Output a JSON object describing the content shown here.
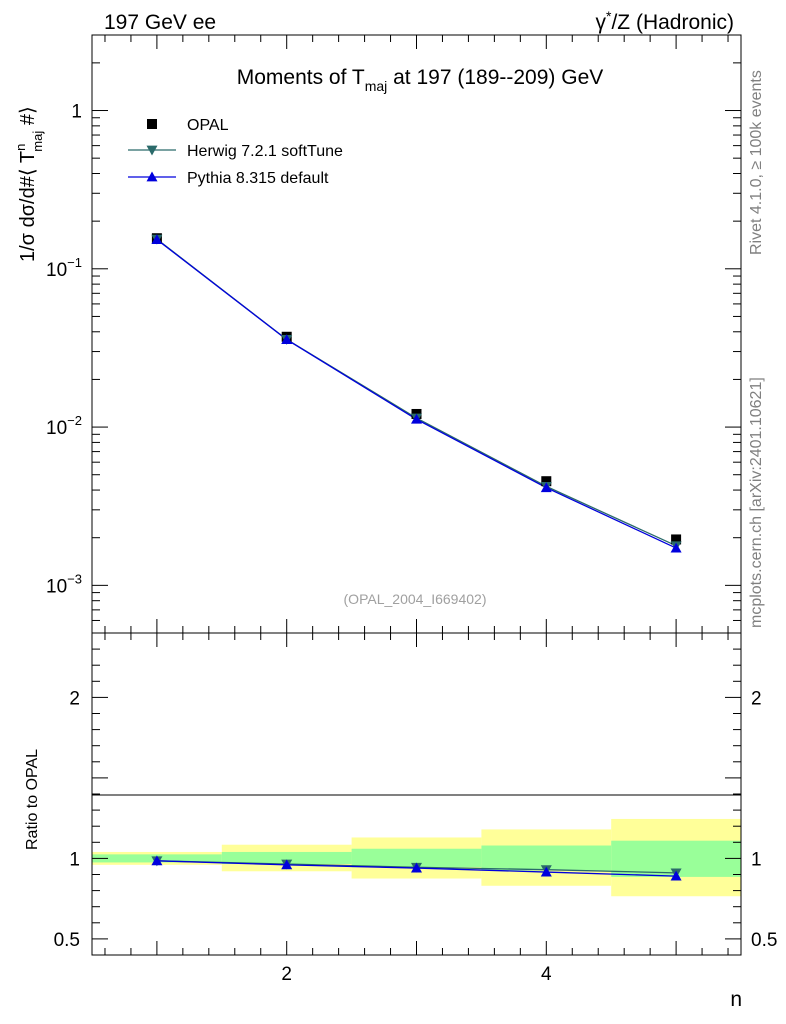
{
  "header": {
    "left": "197 GeV ee",
    "right_prefix": "γ",
    "right_sup": "*",
    "right_rest": "/Z (Hadronic)"
  },
  "side_labels": {
    "top": "Rivet 4.1.0, ≥ 100k events",
    "bottom": "mcplots.cern.ch [arXiv:2401.10621]"
  },
  "title": {
    "pre": "Moments of T",
    "sub": "maj",
    "post": " at 197 (189--209) GeV"
  },
  "y_label": {
    "p1": "1/σ  dσ/d#⟨ T",
    "sup": "n",
    "sub": "maj",
    "p2": " #⟩"
  },
  "ratio_label": "Ratio to OPAL",
  "x_label": "n",
  "analysis_tag": "(OPAL_2004_I669402)",
  "legend": [
    {
      "name": "OPAL",
      "marker": "square",
      "color": "#000000"
    },
    {
      "name": "Herwig 7.2.1 softTune",
      "marker": "triangle-down",
      "color": "#2a6a6a"
    },
    {
      "name": "Pythia 8.315 default",
      "marker": "triangle-up",
      "color": "#0000dd"
    }
  ],
  "chart_data": {
    "type": "line",
    "title": "Moments of T_maj at 197 (189--209) GeV",
    "xlabel": "n",
    "ylabel": "1/σ dσ/d#⟨ T^n_maj #⟩",
    "xlim": [
      0.5,
      5.5
    ],
    "ylim": [
      0.0005,
      3.0
    ],
    "yscale": "log",
    "ratio_ylim": [
      0.4,
      2.4
    ],
    "x_ticks": [
      {
        "value": 2,
        "label": "2"
      },
      {
        "value": 4,
        "label": "4"
      }
    ],
    "y_ticks": [
      {
        "value": 1,
        "base": "1",
        "exp": ""
      },
      {
        "value": 0.1,
        "base": "10",
        "exp": "−1"
      },
      {
        "value": 0.01,
        "base": "10",
        "exp": "−2"
      },
      {
        "value": 0.001,
        "base": "10",
        "exp": "−3"
      }
    ],
    "ratio_ticks": [
      {
        "value": 0.5,
        "label": "0.5"
      },
      {
        "value": 1,
        "label": "1"
      },
      {
        "value": 2,
        "label": "2"
      }
    ],
    "x": [
      1,
      2,
      3,
      4,
      5
    ],
    "series": [
      {
        "name": "OPAL",
        "values": [
          0.156,
          0.0372,
          0.0121,
          0.00455,
          0.00195
        ],
        "color": "#000000"
      },
      {
        "name": "Herwig 7.2.1 softTune",
        "values": [
          0.154,
          0.0358,
          0.0114,
          0.00422,
          0.00178
        ],
        "color": "#2a6a6a"
      },
      {
        "name": "Pythia 8.315 default",
        "values": [
          0.153,
          0.0357,
          0.0112,
          0.00414,
          0.00172
        ],
        "color": "#0000dd"
      }
    ],
    "ratio_series": [
      {
        "name": "Herwig 7.2.1 softTune",
        "values": [
          0.985,
          0.965,
          0.945,
          0.93,
          0.91
        ]
      },
      {
        "name": "Pythia 8.315 default",
        "values": [
          0.985,
          0.96,
          0.94,
          0.915,
          0.89
        ]
      }
    ],
    "uncertainty_bands": {
      "bins": [
        [
          0.5,
          1.5
        ],
        [
          1.5,
          2.5
        ],
        [
          2.5,
          3.5
        ],
        [
          3.5,
          4.5
        ],
        [
          4.5,
          5.5
        ]
      ],
      "stat_lo": [
        0.975,
        0.965,
        0.945,
        0.925,
        0.885
      ],
      "stat_hi": [
        1.025,
        1.04,
        1.06,
        1.08,
        1.11
      ],
      "total_lo": [
        0.96,
        0.92,
        0.875,
        0.83,
        0.765
      ],
      "total_hi": [
        1.04,
        1.085,
        1.13,
        1.18,
        1.245
      ],
      "stat_color": "#99ff99",
      "total_color": "#ffff99"
    }
  }
}
